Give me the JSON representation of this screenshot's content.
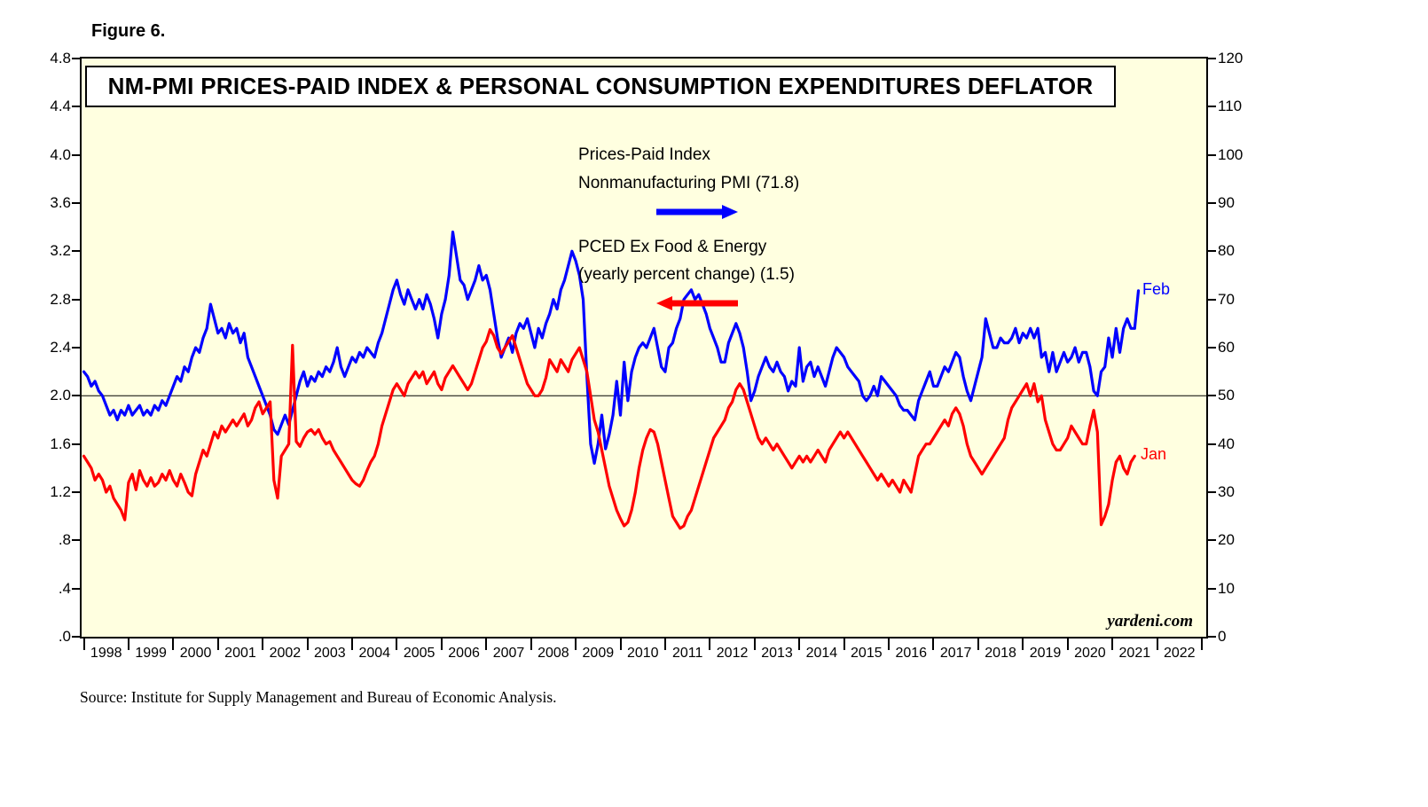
{
  "figure_label": "Figure 6.",
  "source_note": "Source: Institute for Supply Management and Bureau of Economic Analysis.",
  "watermark": "yardeni.com",
  "legend": {
    "pmi_line1": "Prices-Paid Index",
    "pmi_line2": "Nonmanufacturing PMI (71.8)",
    "pced_line1": "PCED Ex Food & Energy",
    "pced_line2": "(yearly percent change) (1.5)"
  },
  "end_labels": {
    "pmi": "Feb",
    "pced": "Jan"
  },
  "colors": {
    "pmi": "#0000ff",
    "pced": "#ff0000",
    "plot_bg": "#FFFFE0",
    "axis": "#000000"
  },
  "chart_data": {
    "type": "line",
    "title": "NM-PMI PRICES-PAID INDEX & PERSONAL CONSUMPTION EXPENDITURES DEFLATOR",
    "grid": false,
    "legend_position": "upper-center",
    "reference_line_left": 2.0,
    "x_axis": {
      "range": [
        1997.45,
        2022.6
      ],
      "tick_values": [
        1998,
        1999,
        2000,
        2001,
        2002,
        2003,
        2004,
        2005,
        2006,
        2007,
        2008,
        2009,
        2010,
        2011,
        2012,
        2013,
        2014,
        2015,
        2016,
        2017,
        2018,
        2019,
        2020,
        2021,
        2022
      ],
      "tick_labels": [
        "1998",
        "1999",
        "2000",
        "2001",
        "2002",
        "2003",
        "2004",
        "2005",
        "2006",
        "2007",
        "2008",
        "2009",
        "2010",
        "2011",
        "2012",
        "2013",
        "2014",
        "2015",
        "2016",
        "2017",
        "2018",
        "2019",
        "2020",
        "2021",
        "2022"
      ]
    },
    "left_axis": {
      "range": [
        0,
        4.8
      ],
      "tick_values": [
        4.8,
        4.4,
        4.0,
        3.6,
        3.2,
        2.8,
        2.4,
        2.0,
        1.6,
        1.2,
        0.8,
        0.4,
        0.0
      ],
      "tick_labels": [
        "4.8",
        "4.4",
        "4.0",
        "3.6",
        "3.2",
        "2.8",
        "2.4",
        "2.0",
        "1.6",
        "1.2",
        ".8",
        ".4",
        ".0"
      ]
    },
    "right_axis": {
      "range": [
        0,
        120
      ],
      "tick_values": [
        120,
        110,
        100,
        90,
        80,
        70,
        60,
        50,
        40,
        30,
        20,
        10,
        0
      ],
      "tick_labels": [
        "120",
        "110",
        "100",
        "90",
        "80",
        "70",
        "60",
        "50",
        "40",
        "30",
        "20",
        "10",
        "0"
      ]
    },
    "series": [
      {
        "name": "Prices-Paid Index Nonmanufacturing PMI",
        "axis": "right",
        "color": "pmi",
        "latest_period": "Feb",
        "latest_value": 71.8,
        "start_year": 1997,
        "start_month": 7,
        "values": [
          55,
          54,
          52,
          53,
          51,
          50,
          48,
          46,
          47,
          45,
          47,
          46,
          48,
          46,
          47,
          48,
          46,
          47,
          46,
          48,
          47,
          49,
          48,
          50,
          52,
          54,
          53,
          56,
          55,
          58,
          60,
          59,
          62,
          64,
          69,
          66,
          63,
          64,
          62,
          65,
          63,
          64,
          61,
          63,
          58,
          56,
          54,
          52,
          50,
          48,
          46,
          43,
          42,
          44,
          46,
          44,
          47,
          50,
          53,
          55,
          52,
          54,
          53,
          55,
          54,
          56,
          55,
          57,
          60,
          56,
          54,
          56,
          58,
          57,
          59,
          58,
          60,
          59,
          58,
          61,
          63,
          66,
          69,
          72,
          74,
          71,
          69,
          72,
          70,
          68,
          70,
          68,
          71,
          69,
          66,
          62,
          67,
          70,
          75,
          84,
          79,
          74,
          73,
          70,
          72,
          74,
          77,
          74,
          75,
          72,
          67,
          62,
          58,
          60,
          62,
          59,
          63,
          65,
          64,
          66,
          63,
          60,
          64,
          62,
          65,
          67,
          70,
          68,
          72,
          74,
          77,
          80,
          78,
          75,
          70,
          54,
          40,
          36,
          40,
          46,
          39,
          42,
          46,
          53,
          46,
          57,
          49,
          55,
          58,
          60,
          61,
          60,
          62,
          64,
          60,
          56,
          55,
          60,
          61,
          64,
          66,
          70,
          71,
          72,
          70,
          71,
          69,
          67,
          64,
          62,
          60,
          57,
          57,
          61,
          63,
          65,
          63,
          60,
          55,
          49,
          51,
          54,
          56,
          58,
          56,
          55,
          57,
          55,
          54,
          51,
          53,
          52,
          60,
          53,
          56,
          57,
          54,
          56,
          54,
          52,
          55,
          58,
          60,
          59,
          58,
          56,
          55,
          54,
          53,
          50,
          49,
          50,
          52,
          50,
          54,
          53,
          52,
          51,
          50,
          48,
          47,
          47,
          46,
          45,
          49,
          51,
          53,
          55,
          52,
          52,
          54,
          56,
          55,
          57,
          59,
          58,
          54,
          51,
          49,
          52,
          55,
          58,
          66,
          63,
          60,
          60,
          62,
          61,
          61,
          62,
          64,
          61,
          63,
          62,
          64,
          62,
          64,
          58,
          59,
          55,
          59,
          55,
          57,
          59,
          57,
          58,
          60,
          57,
          59,
          59,
          56,
          51,
          50,
          55,
          56,
          62,
          58,
          64,
          59,
          64,
          66,
          64,
          64,
          71.8
        ]
      },
      {
        "name": "PCED Ex Food & Energy yearly percent change",
        "axis": "left",
        "color": "pced",
        "latest_period": "Jan",
        "latest_value": 1.5,
        "start_year": 1997,
        "start_month": 7,
        "values": [
          1.5,
          1.45,
          1.4,
          1.3,
          1.35,
          1.3,
          1.2,
          1.25,
          1.15,
          1.1,
          1.05,
          0.97,
          1.28,
          1.35,
          1.22,
          1.38,
          1.3,
          1.25,
          1.32,
          1.25,
          1.28,
          1.35,
          1.3,
          1.38,
          1.3,
          1.25,
          1.35,
          1.28,
          1.2,
          1.17,
          1.35,
          1.45,
          1.55,
          1.5,
          1.6,
          1.7,
          1.65,
          1.75,
          1.7,
          1.75,
          1.8,
          1.75,
          1.8,
          1.85,
          1.75,
          1.8,
          1.9,
          1.95,
          1.85,
          1.9,
          1.95,
          1.3,
          1.15,
          1.5,
          1.55,
          1.6,
          2.42,
          1.62,
          1.58,
          1.65,
          1.7,
          1.72,
          1.68,
          1.72,
          1.65,
          1.6,
          1.62,
          1.55,
          1.5,
          1.45,
          1.4,
          1.35,
          1.3,
          1.27,
          1.25,
          1.3,
          1.38,
          1.45,
          1.5,
          1.6,
          1.75,
          1.85,
          1.95,
          2.05,
          2.1,
          2.05,
          2.0,
          2.1,
          2.15,
          2.2,
          2.15,
          2.2,
          2.1,
          2.15,
          2.2,
          2.1,
          2.05,
          2.15,
          2.2,
          2.25,
          2.2,
          2.15,
          2.1,
          2.05,
          2.1,
          2.2,
          2.3,
          2.4,
          2.45,
          2.55,
          2.5,
          2.4,
          2.35,
          2.4,
          2.45,
          2.5,
          2.4,
          2.3,
          2.2,
          2.1,
          2.05,
          2.0,
          2.0,
          2.05,
          2.15,
          2.3,
          2.25,
          2.2,
          2.3,
          2.25,
          2.2,
          2.3,
          2.35,
          2.4,
          2.3,
          2.2,
          2.0,
          1.8,
          1.7,
          1.55,
          1.4,
          1.25,
          1.15,
          1.05,
          0.98,
          0.92,
          0.95,
          1.05,
          1.2,
          1.4,
          1.55,
          1.65,
          1.72,
          1.7,
          1.6,
          1.45,
          1.3,
          1.15,
          1.0,
          0.95,
          0.9,
          0.92,
          1.0,
          1.05,
          1.15,
          1.25,
          1.35,
          1.45,
          1.55,
          1.65,
          1.7,
          1.75,
          1.8,
          1.9,
          1.95,
          2.05,
          2.1,
          2.05,
          1.95,
          1.85,
          1.75,
          1.65,
          1.6,
          1.65,
          1.6,
          1.55,
          1.6,
          1.55,
          1.5,
          1.45,
          1.4,
          1.45,
          1.5,
          1.45,
          1.5,
          1.45,
          1.5,
          1.55,
          1.5,
          1.45,
          1.55,
          1.6,
          1.65,
          1.7,
          1.65,
          1.7,
          1.65,
          1.6,
          1.55,
          1.5,
          1.45,
          1.4,
          1.35,
          1.3,
          1.35,
          1.3,
          1.25,
          1.3,
          1.25,
          1.2,
          1.3,
          1.25,
          1.2,
          1.35,
          1.5,
          1.55,
          1.6,
          1.6,
          1.65,
          1.7,
          1.75,
          1.8,
          1.75,
          1.85,
          1.9,
          1.85,
          1.75,
          1.6,
          1.5,
          1.45,
          1.4,
          1.35,
          1.4,
          1.45,
          1.5,
          1.55,
          1.6,
          1.65,
          1.8,
          1.9,
          1.95,
          2.0,
          2.05,
          2.1,
          2.0,
          2.1,
          1.95,
          2.0,
          1.8,
          1.7,
          1.6,
          1.55,
          1.55,
          1.6,
          1.65,
          1.75,
          1.7,
          1.65,
          1.6,
          1.6,
          1.75,
          1.88,
          1.7,
          0.93,
          1.0,
          1.1,
          1.3,
          1.45,
          1.5,
          1.4,
          1.35,
          1.45,
          1.5
        ]
      }
    ]
  }
}
